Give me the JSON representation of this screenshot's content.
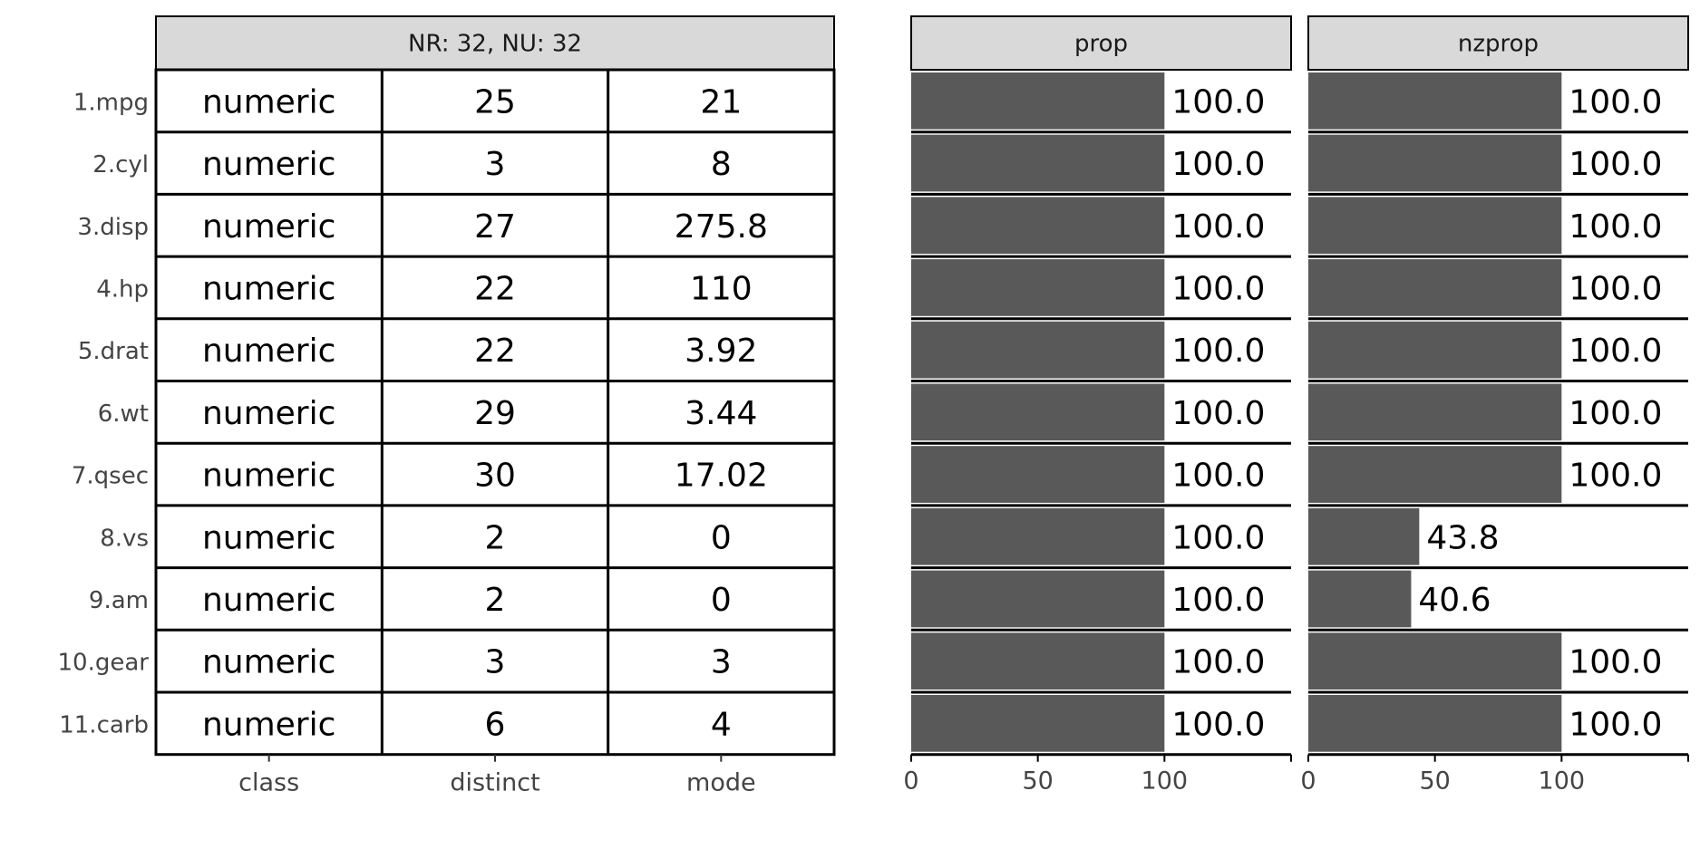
{
  "chart_data": [
    {
      "type": "table",
      "title": "NR: 32, NU: 32",
      "columns": [
        "class",
        "distinct",
        "mode"
      ],
      "rows": [
        {
          "label": "1.mpg",
          "class": "numeric",
          "distinct": "25",
          "mode": "21"
        },
        {
          "label": "2.cyl",
          "class": "numeric",
          "distinct": "3",
          "mode": "8"
        },
        {
          "label": "3.disp",
          "class": "numeric",
          "distinct": "27",
          "mode": "275.8"
        },
        {
          "label": "4.hp",
          "class": "numeric",
          "distinct": "22",
          "mode": "110"
        },
        {
          "label": "5.drat",
          "class": "numeric",
          "distinct": "22",
          "mode": "3.92"
        },
        {
          "label": "6.wt",
          "class": "numeric",
          "distinct": "29",
          "mode": "3.44"
        },
        {
          "label": "7.qsec",
          "class": "numeric",
          "distinct": "30",
          "mode": "17.02"
        },
        {
          "label": "8.vs",
          "class": "numeric",
          "distinct": "2",
          "mode": "0"
        },
        {
          "label": "9.am",
          "class": "numeric",
          "distinct": "2",
          "mode": "0"
        },
        {
          "label": "10.gear",
          "class": "numeric",
          "distinct": "3",
          "mode": "3"
        },
        {
          "label": "11.carb",
          "class": "numeric",
          "distinct": "6",
          "mode": "4"
        }
      ]
    },
    {
      "type": "bar",
      "orientation": "horizontal",
      "title": "prop",
      "categories": [
        "1.mpg",
        "2.cyl",
        "3.disp",
        "4.hp",
        "5.drat",
        "6.wt",
        "7.qsec",
        "8.vs",
        "9.am",
        "10.gear",
        "11.carb"
      ],
      "values": [
        100.0,
        100.0,
        100.0,
        100.0,
        100.0,
        100.0,
        100.0,
        100.0,
        100.0,
        100.0,
        100.0
      ],
      "value_labels": [
        "100.0",
        "100.0",
        "100.0",
        "100.0",
        "100.0",
        "100.0",
        "100.0",
        "100.0",
        "100.0",
        "100.0",
        "100.0"
      ],
      "xlim": [
        0,
        150
      ],
      "xticks": [
        "0",
        "50",
        "100"
      ],
      "bar_color": "#595959"
    },
    {
      "type": "bar",
      "orientation": "horizontal",
      "title": "nzprop",
      "categories": [
        "1.mpg",
        "2.cyl",
        "3.disp",
        "4.hp",
        "5.drat",
        "6.wt",
        "7.qsec",
        "8.vs",
        "9.am",
        "10.gear",
        "11.carb"
      ],
      "values": [
        100.0,
        100.0,
        100.0,
        100.0,
        100.0,
        100.0,
        100.0,
        43.8,
        40.6,
        100.0,
        100.0
      ],
      "value_labels": [
        "100.0",
        "100.0",
        "100.0",
        "100.0",
        "100.0",
        "100.0",
        "100.0",
        "43.8",
        "40.6",
        "100.0",
        "100.0"
      ],
      "xlim": [
        0,
        150
      ],
      "xticks": [
        "0",
        "50",
        "100"
      ],
      "bar_color": "#595959"
    }
  ],
  "colors": {
    "strip_fill": "#d9d9d9",
    "bar": "#595959",
    "grid_line": "#000000",
    "label_text": "#444444"
  }
}
